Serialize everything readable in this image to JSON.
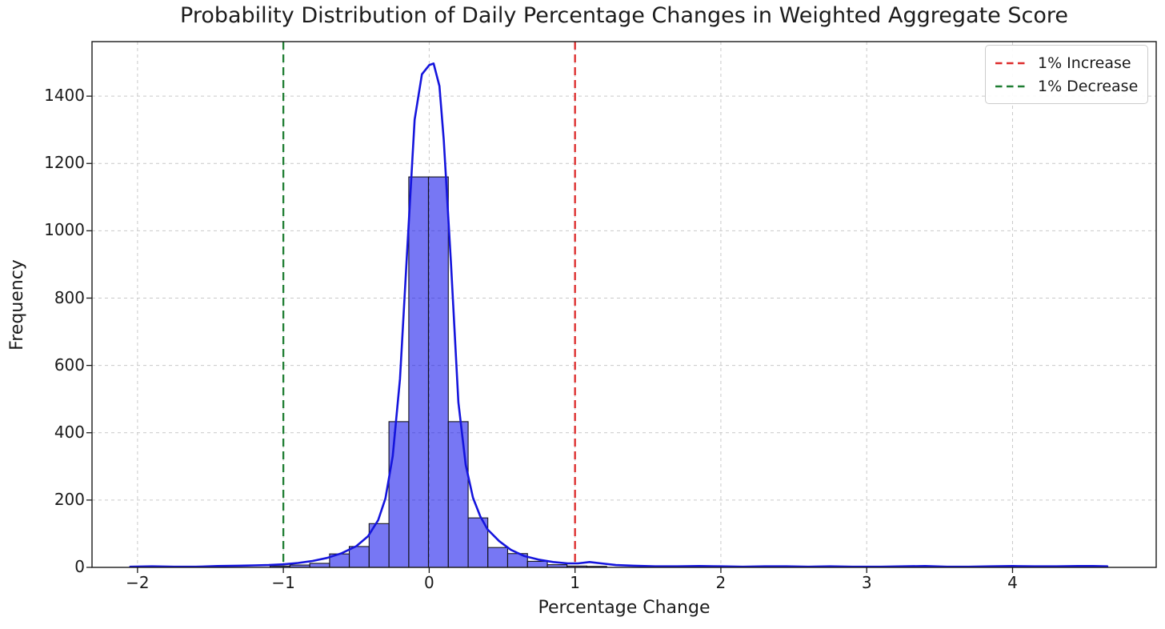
{
  "title": "Probability Distribution of Daily Percentage Changes in Weighted Aggregate Score",
  "axes": {
    "xlabel": "Percentage Change",
    "ylabel": "Frequency"
  },
  "legend": {
    "position": "upper right",
    "items": [
      {
        "label": "1% Increase",
        "color": "#dd2c2c",
        "line_style": "dashed"
      },
      {
        "label": "1% Decrease",
        "color": "#1e7d32",
        "line_style": "dashed"
      }
    ]
  },
  "chart_data": {
    "type": "histogram",
    "title": "Probability Distribution of Daily Percentage Changes in Weighted Aggregate Score",
    "xlabel": "Percentage Change",
    "ylabel": "Frequency",
    "xlim": [
      -2.312,
      4.985
    ],
    "ylim": [
      0,
      1562
    ],
    "grid": true,
    "grid_color": "#c9c9c9",
    "spine_color": "#1a1a1a",
    "bar_fill": "rgba(8,8,235,0.55)",
    "bar_edge": "#15151a",
    "kde_color": "#1515dd",
    "xticks": [
      {
        "value": -2,
        "label": "−2"
      },
      {
        "value": -1,
        "label": "−1"
      },
      {
        "value": 0,
        "label": "0"
      },
      {
        "value": 1,
        "label": "1"
      },
      {
        "value": 2,
        "label": "2"
      },
      {
        "value": 3,
        "label": "3"
      },
      {
        "value": 4,
        "label": "4"
      }
    ],
    "yticks": [
      {
        "value": 0,
        "label": "0"
      },
      {
        "value": 200,
        "label": "200"
      },
      {
        "value": 400,
        "label": "400"
      },
      {
        "value": 600,
        "label": "600"
      },
      {
        "value": 800,
        "label": "800"
      },
      {
        "value": 1000,
        "label": "1000"
      },
      {
        "value": 1200,
        "label": "1200"
      },
      {
        "value": 1400,
        "label": "1400"
      }
    ],
    "bins": [
      [
        -1.091,
        -0.955,
        4
      ],
      [
        -0.955,
        -0.819,
        7
      ],
      [
        -0.819,
        -0.683,
        12
      ],
      [
        -0.683,
        -0.548,
        40
      ],
      [
        -0.548,
        -0.412,
        62
      ],
      [
        -0.412,
        -0.276,
        130
      ],
      [
        -0.276,
        -0.14,
        433
      ],
      [
        -0.14,
        -0.005,
        1160
      ],
      [
        -0.005,
        0.131,
        1160
      ],
      [
        0.131,
        0.267,
        433
      ],
      [
        0.267,
        0.402,
        147
      ],
      [
        0.402,
        0.538,
        59
      ],
      [
        0.538,
        0.674,
        41
      ],
      [
        0.674,
        0.81,
        18
      ],
      [
        0.81,
        0.945,
        8
      ],
      [
        0.945,
        1.081,
        4
      ],
      [
        1.081,
        1.217,
        3
      ]
    ],
    "kde_points": [
      [
        -2.05,
        2
      ],
      [
        -1.9,
        3
      ],
      [
        -1.75,
        2
      ],
      [
        -1.6,
        2
      ],
      [
        -1.45,
        4
      ],
      [
        -1.3,
        5
      ],
      [
        -1.2,
        6
      ],
      [
        -1.1,
        7
      ],
      [
        -1.0,
        9
      ],
      [
        -0.9,
        13
      ],
      [
        -0.8,
        19
      ],
      [
        -0.7,
        28
      ],
      [
        -0.6,
        42
      ],
      [
        -0.5,
        63
      ],
      [
        -0.42,
        92
      ],
      [
        -0.35,
        140
      ],
      [
        -0.3,
        205
      ],
      [
        -0.25,
        330
      ],
      [
        -0.2,
        560
      ],
      [
        -0.15,
        950
      ],
      [
        -0.1,
        1330
      ],
      [
        -0.05,
        1465
      ],
      [
        0.0,
        1492
      ],
      [
        0.03,
        1497
      ],
      [
        0.07,
        1430
      ],
      [
        0.1,
        1270
      ],
      [
        0.15,
        900
      ],
      [
        0.2,
        490
      ],
      [
        0.25,
        305
      ],
      [
        0.3,
        207
      ],
      [
        0.35,
        152
      ],
      [
        0.4,
        113
      ],
      [
        0.48,
        78
      ],
      [
        0.56,
        52
      ],
      [
        0.65,
        34
      ],
      [
        0.75,
        23
      ],
      [
        0.85,
        16
      ],
      [
        0.95,
        12
      ],
      [
        1.02,
        12
      ],
      [
        1.1,
        16
      ],
      [
        1.18,
        12
      ],
      [
        1.28,
        7
      ],
      [
        1.4,
        5
      ],
      [
        1.55,
        3
      ],
      [
        1.7,
        3
      ],
      [
        1.85,
        4
      ],
      [
        2.0,
        3
      ],
      [
        2.15,
        2
      ],
      [
        2.3,
        3
      ],
      [
        2.45,
        3
      ],
      [
        2.6,
        2
      ],
      [
        2.75,
        3
      ],
      [
        2.9,
        2
      ],
      [
        3.1,
        2
      ],
      [
        3.25,
        3
      ],
      [
        3.4,
        4
      ],
      [
        3.55,
        2
      ],
      [
        3.7,
        2
      ],
      [
        3.85,
        3
      ],
      [
        4.0,
        4
      ],
      [
        4.15,
        3
      ],
      [
        4.3,
        3
      ],
      [
        4.45,
        4
      ],
      [
        4.55,
        4
      ],
      [
        4.65,
        3
      ]
    ],
    "vlines": [
      {
        "x": 1,
        "color": "#dd2c2c",
        "label": "1% Increase",
        "style": "dashed"
      },
      {
        "x": -1,
        "color": "#1e7d32",
        "label": "1% Decrease",
        "style": "dashed"
      }
    ]
  }
}
